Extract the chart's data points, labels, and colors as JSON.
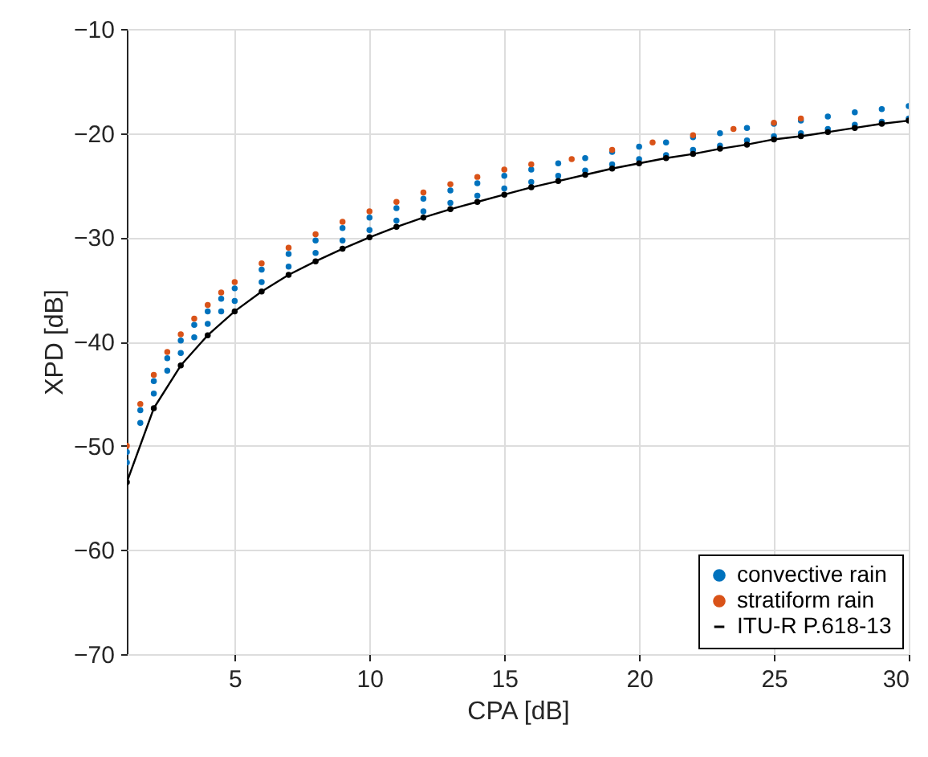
{
  "chart_data": {
    "type": "scatter",
    "xlabel": "CPA [dB]",
    "ylabel": "XPD [dB]",
    "xlim": [
      1,
      30
    ],
    "xticks": [
      5,
      10,
      15,
      20,
      25,
      30
    ],
    "ylim": [
      -70,
      -10
    ],
    "yticks": [
      -70,
      -60,
      -50,
      -40,
      -30,
      -20,
      -10
    ],
    "grid": true,
    "legend": "bottom right",
    "marker": "circle",
    "series": [
      {
        "name": "convective rain",
        "color": "#0072bd",
        "x": [
          1,
          1,
          1.5,
          1.5,
          2,
          2,
          2.5,
          2.5,
          3,
          3,
          3.5,
          3.5,
          4,
          4,
          4.5,
          4.5,
          5,
          5,
          6,
          6,
          7,
          7,
          8,
          8,
          9,
          9,
          10,
          10,
          11,
          11,
          12,
          12,
          13,
          13,
          14,
          14,
          15,
          15,
          16,
          16,
          17,
          17,
          18,
          18,
          19,
          19,
          20,
          20,
          21,
          21,
          22,
          22,
          23,
          23,
          24,
          24,
          25,
          25,
          26,
          26,
          27,
          27,
          28,
          28,
          29,
          29,
          30,
          30
        ],
        "values": [
          -50.6,
          -51.6,
          -46.6,
          -47.8,
          -43.8,
          -45.0,
          -41.6,
          -42.8,
          -39.9,
          -41.1,
          -38.4,
          -39.6,
          -37.1,
          -38.3,
          -35.9,
          -37.1,
          -34.9,
          -36.1,
          -33.1,
          -34.3,
          -31.6,
          -32.8,
          -30.3,
          -31.5,
          -29.1,
          -30.3,
          -28.1,
          -29.3,
          -27.2,
          -28.4,
          -26.3,
          -27.5,
          -25.5,
          -26.7,
          -24.8,
          -26.0,
          -24.1,
          -25.3,
          -23.5,
          -24.7,
          -22.9,
          -24.1,
          -22.4,
          -23.6,
          -21.8,
          -23.0,
          -21.3,
          -22.5,
          -20.9,
          -22.1,
          -20.4,
          -21.6,
          -20.0,
          -21.2,
          -19.5,
          -20.7,
          -19.1,
          -20.3,
          -18.8,
          -20.0,
          -18.4,
          -19.6,
          -18.0,
          -19.2,
          -17.7,
          -18.9,
          -17.4,
          -18.6
        ]
      },
      {
        "name": "stratiform rain",
        "color": "#d95319",
        "x": [
          1,
          1.5,
          2,
          2.5,
          3,
          3.5,
          4,
          4.5,
          5,
          6,
          7,
          8,
          9,
          10,
          11,
          12,
          13,
          14,
          15,
          16,
          17.5,
          19,
          20.5,
          22,
          23.5,
          25,
          26
        ],
        "values": [
          -50.0,
          -46.0,
          -43.2,
          -41.0,
          -39.3,
          -37.8,
          -36.5,
          -35.3,
          -34.3,
          -32.5,
          -31.0,
          -29.7,
          -28.5,
          -27.5,
          -26.6,
          -25.7,
          -24.9,
          -24.2,
          -23.5,
          -23.0,
          -22.5,
          -21.6,
          -20.9,
          -20.2,
          -19.6,
          -19.0,
          -18.6
        ]
      },
      {
        "name": "ITU-R P.618-13",
        "color": "#000000",
        "type": "line",
        "x": [
          1,
          2,
          3,
          4,
          5,
          6,
          7,
          8,
          9,
          10,
          11,
          12,
          13,
          14,
          15,
          16,
          17,
          18,
          19,
          20,
          21,
          22,
          23,
          24,
          25,
          26,
          27,
          28,
          29,
          30
        ],
        "values": [
          -53.5,
          -46.4,
          -42.3,
          -39.4,
          -37.1,
          -35.2,
          -33.6,
          -32.3,
          -31.1,
          -30.0,
          -29.0,
          -28.1,
          -27.3,
          -26.6,
          -25.9,
          -25.2,
          -24.6,
          -24.0,
          -23.4,
          -22.9,
          -22.4,
          -22.0,
          -21.5,
          -21.1,
          -20.6,
          -20.3,
          -19.9,
          -19.5,
          -19.1,
          -18.8
        ]
      }
    ]
  }
}
